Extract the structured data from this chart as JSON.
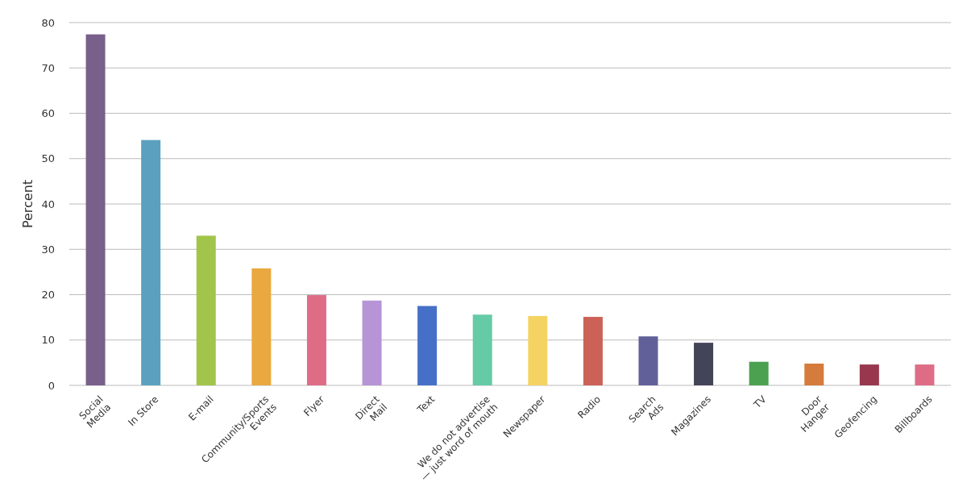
{
  "chart_data": {
    "type": "bar",
    "ylabel": "Percent",
    "categories": [
      "Social Media",
      "In Store",
      "E-mail",
      "Community/Sports Events",
      "Flyer",
      "Direct Mail",
      "Text",
      "We do not advertise — just word of mouth",
      "Newspaper",
      "Radio",
      "Search Ads",
      "Magazines",
      "TV",
      "Door Hanger",
      "Geofencing",
      "Billboards"
    ],
    "values": [
      77.4,
      54.1,
      33.0,
      25.8,
      19.9,
      18.7,
      17.5,
      15.6,
      15.3,
      15.1,
      10.8,
      9.4,
      5.2,
      4.8,
      4.6,
      4.6
    ],
    "colors": [
      "#77608a",
      "#5ba1bf",
      "#a1c54a",
      "#e9a840",
      "#df6c85",
      "#b794d6",
      "#4670c7",
      "#65cba6",
      "#f5d362",
      "#cb6157",
      "#616099",
      "#424457",
      "#4ba150",
      "#d57b3b",
      "#98374e",
      "#df6c85"
    ],
    "ylim": [
      0,
      80
    ],
    "yticks": [
      0,
      10,
      20,
      30,
      40,
      50,
      60,
      70,
      80
    ],
    "grid": "y"
  }
}
